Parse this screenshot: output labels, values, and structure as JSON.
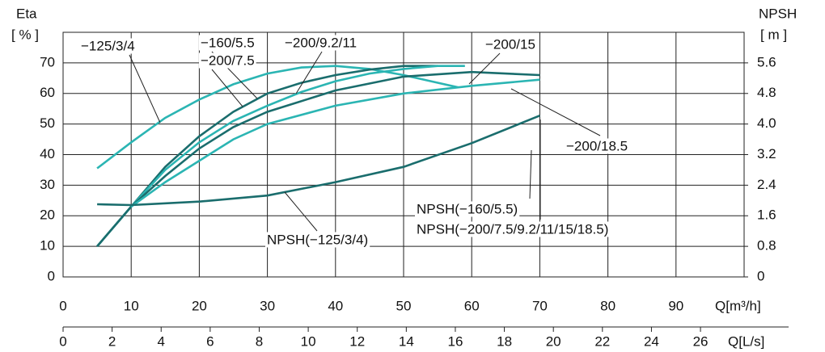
{
  "chart_data": {
    "type": "line",
    "y_label": [
      "Eta",
      "[ % ]"
    ],
    "y2_label": [
      "NPSH",
      "[ m ]"
    ],
    "x_label": "Q[m³/h]",
    "x2_label": "Q[L/s]",
    "xlim": [
      0,
      100
    ],
    "xticks": [
      0,
      10,
      20,
      30,
      40,
      50,
      60,
      70,
      80,
      90
    ],
    "x2lim": [
      0,
      27.78
    ],
    "x2ticks": [
      0,
      2,
      4,
      6,
      8,
      10,
      12,
      14,
      16,
      18,
      20,
      22,
      24,
      26
    ],
    "ylim": [
      0,
      80
    ],
    "yticks": [
      0,
      10,
      20,
      30,
      40,
      50,
      60,
      70
    ],
    "y2lim": [
      0,
      6.4
    ],
    "y2ticks": [
      0,
      0.8,
      1.6,
      2.4,
      3.2,
      {
        "value": 4,
        "label": "4.0"
      },
      4.8,
      5.6
    ],
    "grid": true,
    "series": [
      {
        "color": "#2bb5b3",
        "x": [
          5,
          10,
          15,
          20,
          25,
          30,
          35,
          40,
          45,
          50,
          55,
          58
        ],
        "values": [
          35.5,
          44,
          52,
          58,
          63,
          66.5,
          68.5,
          69,
          68,
          66,
          63.5,
          62
        ]
      },
      {
        "color": "#1a6d6d",
        "x": [
          5,
          10,
          15,
          20,
          25,
          30,
          35,
          40,
          45,
          50,
          55
        ],
        "values": [
          10,
          23,
          36,
          46,
          54,
          60,
          63.5,
          66,
          67.8,
          69,
          69
        ]
      },
      {
        "color": "#2bb5b3",
        "x": [
          5,
          10,
          15,
          20,
          25,
          30,
          35,
          40,
          45,
          50,
          55,
          59
        ],
        "values": [
          10,
          23,
          35,
          44,
          51,
          56,
          60.5,
          64,
          66.5,
          68,
          69,
          69
        ]
      },
      {
        "color": "#1a6d6d",
        "x": [
          5,
          10,
          15,
          20,
          25,
          30,
          40,
          50,
          60,
          70
        ],
        "values": [
          10,
          23,
          33,
          42,
          49,
          54,
          61,
          65.5,
          67,
          66
        ]
      },
      {
        "color": "#2bb5b3",
        "x": [
          10,
          15,
          20,
          25,
          30,
          40,
          50,
          60,
          70
        ],
        "values": [
          23,
          31,
          38,
          45,
          50,
          56,
          60,
          62.5,
          64.5
        ]
      },
      {
        "color": "#1a6d6d",
        "axis": "y2",
        "x": [
          5,
          10,
          20,
          30,
          40,
          50,
          60,
          70
        ],
        "values": [
          1.9,
          1.88,
          1.97,
          2.13,
          2.48,
          2.88,
          3.5,
          4.22
        ]
      }
    ],
    "annotations": [
      "−125/3/4",
      "−160/5.5",
      "−200/7.5",
      "−200/9.2/11",
      "−200/15",
      "−200/18.5",
      "NPSH(−160/5.5)",
      "NPSH(−200/7.5/9.2/11/15/18.5)",
      "NPSH(−125/3/4)"
    ]
  }
}
